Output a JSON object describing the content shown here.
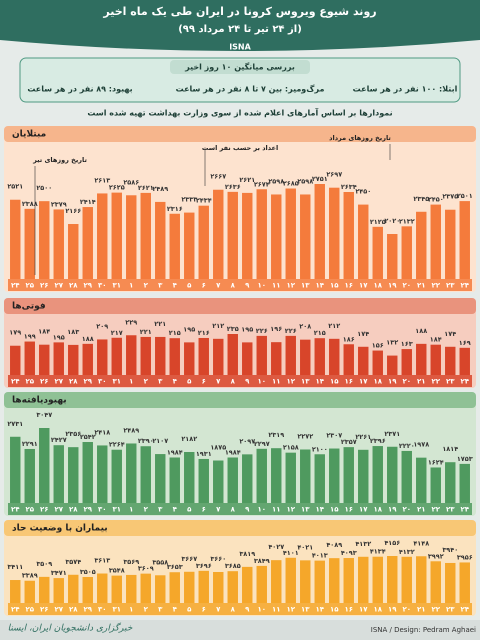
{
  "header": {
    "title": "روند شیوع ویروس کرونا در ایران طی یک ماه اخیر",
    "subtitle": "(از ۲۴ تیر تا ۲۴ مرداد ۹۹)",
    "brand": "ISNA"
  },
  "summary": {
    "title": "بررسی میانگین ۱۰ روز اخیر",
    "items": [
      "ابتلا: ۱۰۰ نفر در هر ساعت",
      "مرگ‌ومیر: بین ۷ تا ۸ نفر در هر ساعت",
      "بهبود: ۸۹ نفر در هر ساعت"
    ],
    "note": "نمودارها بر اساس آمارهای اعلام شده از سوی وزارت بهداشت تهیه شده است"
  },
  "chart_data": [
    {
      "type": "bar",
      "title": "مبتلایان",
      "color": "#f47b3c",
      "background": "#fde3cf",
      "tab": "#f6b58c",
      "annotations": [
        "تاریخ روزهای تیر",
        "اعداد بر حسب نفر است",
        "تاریخ روزهای مرداد"
      ],
      "categories": [
        "۲۴",
        "۲۵",
        "۲۶",
        "۲۷",
        "۲۸",
        "۲۹",
        "۳۰",
        "۳۱",
        "۱",
        "۲",
        "۳",
        "۴",
        "۵",
        "۶",
        "۷",
        "۸",
        "۹",
        "۱۰",
        "۱۱",
        "۱۲",
        "۱۳",
        "۱۴",
        "۱۵",
        "۱۶",
        "۱۷",
        "۱۸",
        "۱۹",
        "۲۰",
        "۲۱",
        "۲۲",
        "۲۳",
        "۲۴"
      ],
      "values": [
        2521,
        2388,
        2500,
        2379,
        2166,
        2414,
        2613,
        2625,
        2586,
        2621,
        2489,
        2316,
        2333,
        2434,
        2667,
        2636,
        2621,
        2674,
        2598,
        2685,
        2598,
        2751,
        2697,
        2634,
        2450,
        2125,
        2020,
        2132,
        2345,
        2450,
        2375,
        2501
      ],
      "value_labels": [
        "۲۵۲۱",
        "۲۳۸۸",
        "۲۵۰۰",
        "۲۳۷۹",
        "۲۱۶۶",
        "۲۴۱۴",
        "۲۶۱۳",
        "۲۶۲۵",
        "۲۵۸۶",
        "۲۶۲۱",
        "۲۴۸۹",
        "۲۳۱۶",
        "۲۳۳۳",
        "۲۴۳۴",
        "۲۶۶۷",
        "۲۶۳۶",
        "۲۶۲۱",
        "۲۶۷۴",
        "۲۵۹۸",
        "۲۶۸۵",
        "۲۵۹۸",
        "۲۷۵۱",
        "۲۶۹۷",
        "۲۶۳۴",
        "۲۴۵۰",
        "۲۱۲۵",
        "۲۰۲۰",
        "۲۱۳۲",
        "۲۳۴۵",
        "۲۴۵۰",
        "۲۳۷۵",
        "۲۵۰۱"
      ]
    },
    {
      "type": "bar",
      "title": "فوتی‌ها",
      "color": "#d8452a",
      "background": "#f6cdbf",
      "tab": "#e9937d",
      "categories": [
        "۲۴",
        "۲۵",
        "۲۶",
        "۲۷",
        "۲۸",
        "۲۹",
        "۳۰",
        "۳۱",
        "۱",
        "۲",
        "۳",
        "۴",
        "۵",
        "۶",
        "۷",
        "۸",
        "۹",
        "۱۰",
        "۱۱",
        "۱۲",
        "۱۳",
        "۱۴",
        "۱۵",
        "۱۶",
        "۱۷",
        "۱۸",
        "۱۹",
        "۲۰",
        "۲۱",
        "۲۲",
        "۲۳",
        "۲۴"
      ],
      "values": [
        179,
        199,
        184,
        195,
        183,
        188,
        209,
        217,
        229,
        221,
        221,
        215,
        195,
        216,
        212,
        235,
        195,
        226,
        196,
        226,
        208,
        215,
        212,
        186,
        174,
        156,
        132,
        163,
        188,
        184,
        174,
        169
      ],
      "value_labels": [
        "۱۷۹",
        "۱۹۹",
        "۱۸۴",
        "۱۹۵",
        "۱۸۳",
        "۱۸۸",
        "۲۰۹",
        "۲۱۷",
        "۲۲۹",
        "۲۲۱",
        "۲۲۱",
        "۲۱۵",
        "۱۹۵",
        "۲۱۶",
        "۲۱۲",
        "۲۳۵",
        "۱۹۵",
        "۲۲۶",
        "۱۹۶",
        "۲۲۶",
        "۲۰۸",
        "۲۱۵",
        "۲۱۲",
        "۱۸۶",
        "۱۷۴",
        "۱۵۶",
        "۱۳۲",
        "۱۶۳",
        "۱۸۸",
        "۱۸۴",
        "۱۷۴",
        "۱۶۹"
      ]
    },
    {
      "type": "bar",
      "title": "بهبودیافته‌ها",
      "color": "#4f9a5f",
      "background": "#d3e6d2",
      "tab": "#8fc195",
      "categories": [
        "۲۴",
        "۲۵",
        "۲۶",
        "۲۷",
        "۲۸",
        "۲۹",
        "۳۰",
        "۳۱",
        "۱",
        "۲",
        "۳",
        "۴",
        "۵",
        "۶",
        "۷",
        "۸",
        "۹",
        "۱۰",
        "۱۱",
        "۱۲",
        "۱۳",
        "۱۴",
        "۱۵",
        "۱۶",
        "۱۷",
        "۱۸",
        "۱۹",
        "۲۰",
        "۲۱",
        "۲۲",
        "۲۳",
        "۲۴"
      ],
      "values": [
        2731,
        2291,
        3047,
        2427,
        2356,
        2542,
        2418,
        2264,
        2489,
        2390,
        2107,
        1984,
        2182,
        1931,
        1875,
        1984,
        2097,
        2297,
        2319,
        2158,
        2272,
        2100,
        2307,
        2357,
        2261,
        2396,
        2371,
        2220,
        1978,
        1624,
        1814,
        1753
      ],
      "value_labels": [
        "۲۷۳۱",
        "۲۲۹۱",
        "۳۰۴۷",
        "۲۴۲۷",
        "۲۳۵۶",
        "۲۵۴۲",
        "۲۴۱۸",
        "۲۲۶۴",
        "۲۴۸۹",
        "۲۳۹۰",
        "۲۱۰۷",
        "۱۹۸۴",
        "۲۱۸۲",
        "۱۹۳۱",
        "۱۸۷۵",
        "۱۹۸۴",
        "۲۰۹۷",
        "۲۲۹۷",
        "۲۳۱۹",
        "۲۱۵۸",
        "۲۲۷۲",
        "۲۱۰۰",
        "۲۳۰۷",
        "۲۳۵۷",
        "۲۲۶۱",
        "۲۳۹۶",
        "۲۳۷۱",
        "۲۲۲۰",
        "۱۹۷۸",
        "۱۶۲۴",
        "۱۸۱۴",
        "۱۷۵۳"
      ]
    },
    {
      "type": "bar",
      "title": "بیماران با وضعیت حاد",
      "color": "#f5a72a",
      "background": "#fbe3bf",
      "tab": "#f8c775",
      "categories": [
        "۲۴",
        "۲۵",
        "۲۶",
        "۲۷",
        "۲۸",
        "۲۹",
        "۳۰",
        "۳۱",
        "۱",
        "۲",
        "۳",
        "۴",
        "۵",
        "۶",
        "۷",
        "۸",
        "۹",
        "۱۰",
        "۱۱",
        "۱۲",
        "۱۳",
        "۱۴",
        "۱۵",
        "۱۶",
        "۱۷",
        "۱۸",
        "۱۹",
        "۲۰",
        "۲۱",
        "۲۲",
        "۲۳",
        "۲۴"
      ],
      "values": [
        3411,
        3389,
        3509,
        3471,
        3574,
        3505,
        3613,
        3548,
        3569,
        3609,
        3558,
        3653,
        3667,
        3696,
        3660,
        3685,
        3819,
        3849,
        4027,
        4101,
        4021,
        4013,
        4089,
        4093,
        4132,
        4134,
        4156,
        4132,
        4148,
        3992,
        3940,
        3956
      ],
      "value_labels": [
        "۳۴۱۱",
        "۳۳۸۹",
        "۳۵۰۹",
        "۳۴۷۱",
        "۳۵۷۴",
        "۳۵۰۵",
        "۳۶۱۳",
        "۳۵۴۸",
        "۳۵۶۹",
        "۳۶۰۹",
        "۳۵۵۸",
        "۳۶۵۳",
        "۳۶۶۷",
        "۳۶۹۶",
        "۳۶۶۰",
        "۳۶۸۵",
        "۳۸۱۹",
        "۳۸۴۹",
        "۴۰۲۷",
        "۴۱۰۱",
        "۴۰۲۱",
        "۴۰۱۳",
        "۴۰۸۹",
        "۴۰۹۳",
        "۴۱۳۲",
        "۴۱۳۴",
        "۴۱۵۶",
        "۴۱۳۲",
        "۴۱۴۸",
        "۳۹۹۲",
        "۳۹۴۰",
        "۳۹۵۶"
      ]
    }
  ],
  "footer": {
    "credit": "ISNA / Design: Pedram Aghaei",
    "brand": "خبرگزاری دانشجویان ایران، ایسنا"
  }
}
